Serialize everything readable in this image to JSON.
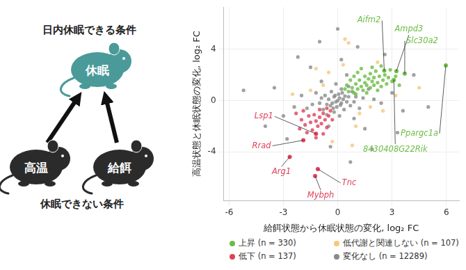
{
  "diagram": {
    "top_label": "日内休眠できる条件",
    "top_mouse": "休眠",
    "bottom_mice": [
      "高温",
      "給餌"
    ],
    "bottom_label": "休眠できない条件"
  },
  "chart_data": {
    "type": "scatter",
    "x_label": "給餌状態から休眠状態の変化, log₂ FC",
    "y_label": "高温状態と休眠状態の変化, log₂ FC",
    "xlim": [
      -6.3,
      6.7
    ],
    "xticks": [
      -6,
      -3,
      0,
      3,
      6
    ],
    "ylim": [
      -7.8,
      7.3
    ],
    "yticks": [
      -4,
      0,
      4
    ],
    "grid": true,
    "legend": "bottom",
    "series": [
      {
        "name": "上昇 (n = 330)",
        "color": "#6abd45",
        "values": [
          [
            0.6,
            0.7
          ],
          [
            0.8,
            1.0
          ],
          [
            0.9,
            0.6
          ],
          [
            1.0,
            1.3
          ],
          [
            1.1,
            0.9
          ],
          [
            1.2,
            1.6
          ],
          [
            1.3,
            1.1
          ],
          [
            1.4,
            0.8
          ],
          [
            1.5,
            1.4
          ],
          [
            1.5,
            1.9
          ],
          [
            1.6,
            1.2
          ],
          [
            1.7,
            1.7
          ],
          [
            1.8,
            1.0
          ],
          [
            1.8,
            2.1
          ],
          [
            1.9,
            1.5
          ],
          [
            2.0,
            1.2
          ],
          [
            2.0,
            1.8
          ],
          [
            2.1,
            2.3
          ],
          [
            2.2,
            1.4
          ],
          [
            2.3,
            1.9
          ],
          [
            2.4,
            1.1
          ],
          [
            2.5,
            1.6
          ],
          [
            2.6,
            2.0
          ],
          [
            2.7,
            1.3
          ],
          [
            2.8,
            1.8
          ],
          [
            3.0,
            1.5
          ],
          [
            3.2,
            1.9
          ],
          [
            0.5,
            1.2
          ],
          [
            0.7,
            1.6
          ],
          [
            0.4,
            0.9
          ],
          [
            1.1,
            2.2
          ],
          [
            1.3,
            2.5
          ],
          [
            0.9,
            1.9
          ],
          [
            2.2,
            0.8
          ],
          [
            1.6,
            0.6
          ],
          [
            3.4,
            1.2
          ],
          [
            2.9,
            2.4
          ],
          [
            1.0,
            0.5
          ],
          [
            1.9,
            2.6
          ],
          [
            2.4,
            2.7
          ]
        ]
      },
      {
        "name": "低下 (n = 137)",
        "color": "#e0405a",
        "values": [
          [
            -0.4,
            -0.8
          ],
          [
            -0.5,
            -1.2
          ],
          [
            -0.6,
            -0.6
          ],
          [
            -0.7,
            -1.5
          ],
          [
            -0.8,
            -1.0
          ],
          [
            -0.9,
            -1.8
          ],
          [
            -1.0,
            -1.3
          ],
          [
            -1.0,
            -0.7
          ],
          [
            -1.1,
            -2.0
          ],
          [
            -1.2,
            -1.6
          ],
          [
            -1.3,
            -1.1
          ],
          [
            -1.4,
            -2.3
          ],
          [
            -1.5,
            -1.7
          ],
          [
            -1.6,
            -1.2
          ],
          [
            -1.7,
            -2.5
          ],
          [
            -1.8,
            -1.9
          ],
          [
            -2.0,
            -1.5
          ],
          [
            -2.1,
            -2.2
          ],
          [
            -0.3,
            -1.5
          ],
          [
            -0.6,
            -2.1
          ],
          [
            -1.2,
            -2.9
          ],
          [
            -0.8,
            -2.6
          ],
          [
            -2.3,
            -1.0
          ],
          [
            -1.9,
            -0.8
          ]
        ]
      },
      {
        "name": "低代謝と関連しない (n = 107)",
        "color": "#f5c77e",
        "values": [
          [
            0.4,
            4.8
          ],
          [
            0.6,
            4.5
          ],
          [
            1.2,
            -1.0
          ],
          [
            1.8,
            -0.5
          ],
          [
            2.5,
            -0.8
          ],
          [
            -0.8,
            1.2
          ],
          [
            -1.5,
            0.8
          ],
          [
            0.3,
            2.8
          ],
          [
            -0.5,
            2.2
          ],
          [
            1.0,
            -2.0
          ],
          [
            3.2,
            0.4
          ],
          [
            -2.5,
            0.5
          ],
          [
            0.8,
            -3.5
          ],
          [
            -0.3,
            -3.2
          ],
          [
            2.2,
            3.0
          ],
          [
            -1.2,
            2.5
          ],
          [
            4.5,
            1.0
          ]
        ]
      },
      {
        "name": "変化なし (n = 12289)",
        "color": "#8a8a8a",
        "values": [
          [
            0,
            0
          ],
          [
            0.1,
            0.2
          ],
          [
            -0.1,
            -0.1
          ],
          [
            0.2,
            -0.2
          ],
          [
            -0.2,
            0.3
          ],
          [
            0.3,
            0.1
          ],
          [
            -0.3,
            -0.2
          ],
          [
            0.15,
            -0.35
          ],
          [
            -0.15,
            0.4
          ],
          [
            0.4,
            0.35
          ],
          [
            -0.4,
            -0.4
          ],
          [
            0.05,
            0.5
          ],
          [
            -0.05,
            -0.5
          ],
          [
            0.5,
            -0.1
          ],
          [
            -0.5,
            0.1
          ],
          [
            0.25,
            0.6
          ],
          [
            -0.25,
            -0.6
          ],
          [
            0.6,
            0.3
          ],
          [
            -0.6,
            -0.3
          ],
          [
            0.7,
            -0.4
          ],
          [
            -0.7,
            0.4
          ],
          [
            0.35,
            -0.7
          ],
          [
            -0.35,
            0.7
          ],
          [
            0.8,
            0.7
          ],
          [
            -0.8,
            -0.7
          ],
          [
            0.9,
            -0.1
          ],
          [
            -0.9,
            0.2
          ],
          [
            1.0,
            0.3
          ],
          [
            -1.0,
            -0.2
          ],
          [
            0.2,
            0.9
          ],
          [
            -0.2,
            -0.9
          ],
          [
            1.2,
            -0.6
          ],
          [
            -1.2,
            0.6
          ],
          [
            0.6,
            1.1
          ],
          [
            -0.6,
            -1.1
          ],
          [
            1.4,
            0.2
          ],
          [
            -1.4,
            -0.3
          ],
          [
            0.1,
            -1.2
          ],
          [
            -0.1,
            1.3
          ],
          [
            1.7,
            0.9
          ],
          [
            -1.7,
            -0.6
          ],
          [
            2.0,
            0.1
          ],
          [
            -2.0,
            0.4
          ],
          [
            0.9,
            -1.4
          ],
          [
            -0.9,
            1.5
          ],
          [
            2.4,
            -0.2
          ],
          [
            -2.4,
            -0.5
          ],
          [
            0.5,
            2.0
          ],
          [
            -0.5,
            -2.0
          ],
          [
            3.0,
            0.6
          ],
          [
            -3.0,
            -1.2
          ],
          [
            1.5,
            -2.2
          ],
          [
            -1.5,
            2.6
          ],
          [
            0.2,
            3.2
          ],
          [
            -0.4,
            -3.6
          ],
          [
            3.6,
            -0.8
          ],
          [
            -3.5,
            1.0
          ],
          [
            2.6,
            3.6
          ],
          [
            -2.8,
            -3.0
          ],
          [
            4.2,
            2.0
          ],
          [
            -4.0,
            -2.0
          ],
          [
            1.1,
            4.2
          ],
          [
            -1.0,
            4.6
          ],
          [
            0.7,
            -4.8
          ],
          [
            5.0,
            -0.5
          ],
          [
            -5.2,
            0.8
          ],
          [
            3.3,
            -2.5
          ],
          [
            -2.2,
            3.4
          ],
          [
            0.0,
            5.6
          ],
          [
            1.9,
            -3.8
          ]
        ]
      }
    ],
    "annotations": [
      {
        "text": "Aifm2",
        "x": 2.57,
        "y": 2.34,
        "series": "上昇 (n = 330)"
      },
      {
        "text": "Ampd3",
        "x": 3.24,
        "y": 2.3,
        "series": "上昇 (n = 330)"
      },
      {
        "text": "Slc30a2",
        "x": 3.7,
        "y": 2.1,
        "series": "上昇 (n = 330)"
      },
      {
        "text": "Ppargc1a",
        "x": 5.97,
        "y": 2.75,
        "series": "上昇 (n = 330)"
      },
      {
        "text": "8430408G22Rik",
        "x": 3.1,
        "y": 1.6,
        "series": "上昇 (n = 330)"
      },
      {
        "text": "Lsp1",
        "x": -1.2,
        "y": -2.6,
        "series": "低下 (n = 137)"
      },
      {
        "text": "Rrad",
        "x": -1.9,
        "y": -3.1,
        "series": "低下 (n = 137)"
      },
      {
        "text": "Arg1",
        "x": -2.65,
        "y": -4.4,
        "series": "低下 (n = 137)"
      },
      {
        "text": "Tnc",
        "x": -1.1,
        "y": -5.35,
        "series": "低下 (n = 137)"
      },
      {
        "text": "Mybph",
        "x": -1.25,
        "y": -5.9,
        "series": "低下 (n = 137)"
      }
    ]
  }
}
